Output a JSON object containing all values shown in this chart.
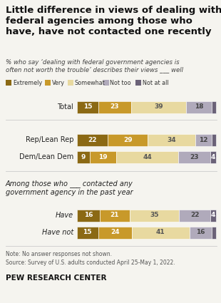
{
  "title": "Little difference in views of dealing with\nfederal agencies among those who\nhave, have not contacted one recently",
  "subtitle": "% who say ‘dealing with federal government agencies is\noften not worth the trouble’ describes their views ___ well",
  "categories": [
    "Total",
    "Rep/Lean Rep",
    "Dem/Lean Dem",
    "Have",
    "Have not"
  ],
  "italic_cats": [
    false,
    false,
    false,
    true,
    true
  ],
  "data": {
    "Total": [
      15,
      23,
      39,
      18,
      3
    ],
    "Rep/Lean Rep": [
      22,
      29,
      34,
      12,
      3
    ],
    "Dem/Lean Dem": [
      9,
      19,
      44,
      23,
      4
    ],
    "Have": [
      16,
      21,
      35,
      22,
      4
    ],
    "Have not": [
      15,
      24,
      41,
      16,
      3
    ]
  },
  "colors": [
    "#8B6914",
    "#C8992A",
    "#E8D9A0",
    "#B0AABB",
    "#6B6278"
  ],
  "legend_labels": [
    "Extremely",
    "Very",
    "Somewhat",
    "Not too",
    "Not at all"
  ],
  "section_annotation": "Among those who ___ contacted any\ngovernment agency in the past year",
  "note": "Note: No answer responses not shown.",
  "source": "Source: Survey of U.S. adults conducted April 25-May 1, 2022.",
  "branding": "PEW RESEARCH CENTER",
  "background_color": "#f5f4ef"
}
